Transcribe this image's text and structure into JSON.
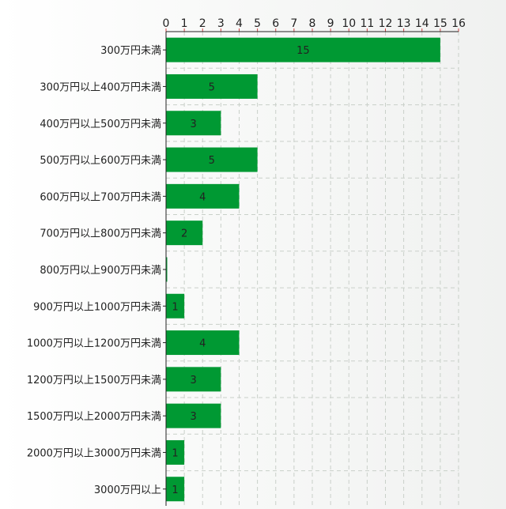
{
  "chart_data": {
    "type": "bar",
    "orientation": "horizontal",
    "categories": [
      "300万円未満",
      "300万円以上400万円未満",
      "400万円以上500万円未満",
      "500万円以上600万円未満",
      "600万円以上700万円未満",
      "700万円以上800万円未満",
      "800万円以上900万円未満",
      "900万円以上1000万円未満",
      "1000万円以上1200万円未満",
      "1200万円以上1500万円未満",
      "1500万円以上2000万円未満",
      "2000万円以上3000万円未満",
      "3000万円以上"
    ],
    "values": [
      15,
      5,
      3,
      5,
      4,
      2,
      0,
      1,
      4,
      3,
      3,
      1,
      1
    ],
    "value_labels": [
      "15",
      "5",
      "3",
      "5",
      "4",
      "2",
      "",
      "1",
      "4",
      "3",
      "3",
      "1",
      "1"
    ],
    "xlim": [
      0,
      16
    ],
    "x_ticks": [
      0,
      1,
      2,
      3,
      4,
      5,
      6,
      7,
      8,
      9,
      10,
      11,
      12,
      13,
      14,
      15,
      16
    ],
    "axis_position": "top",
    "grid": true,
    "title": "",
    "xlabel": "",
    "ylabel": "",
    "colors": {
      "bar": "#009933",
      "axis": "#222222",
      "grid": "#c9d0c9",
      "tick_mark": "#d04040",
      "label": "#222222"
    }
  }
}
